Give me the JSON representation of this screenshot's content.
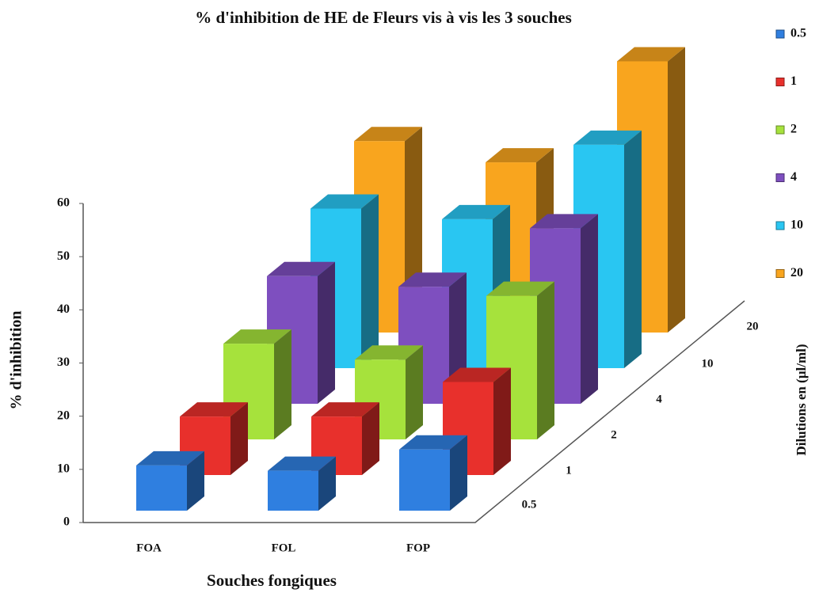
{
  "chart_data": {
    "type": "bar3d",
    "title": "% d'inhibition de HE de Fleurs vis à vis les 3 souches",
    "x_label": "Souches fongiques",
    "y_label": "% d'inhibition",
    "z_label": "Dilutions en (µl/ml)",
    "categories": [
      "FOA",
      "FOL",
      "FOP"
    ],
    "series": [
      {
        "name": "0.5",
        "color": "#2f7fe0",
        "values": [
          8.5,
          7.5,
          11.5
        ]
      },
      {
        "name": "1",
        "color": "#e8302c",
        "values": [
          11,
          11,
          17.5
        ]
      },
      {
        "name": "2",
        "color": "#a6e23c",
        "values": [
          18,
          15,
          27
        ]
      },
      {
        "name": "4",
        "color": "#7e4fbf",
        "values": [
          24,
          22,
          33
        ]
      },
      {
        "name": "10",
        "color": "#29c6f2",
        "values": [
          30,
          28,
          42
        ]
      },
      {
        "name": "20",
        "color": "#f9a51e",
        "values": [
          36,
          32,
          51
        ]
      }
    ],
    "ylim": [
      0,
      60
    ],
    "yticks": [
      0,
      10,
      20,
      30,
      40,
      50,
      60
    ],
    "legend": "right"
  }
}
